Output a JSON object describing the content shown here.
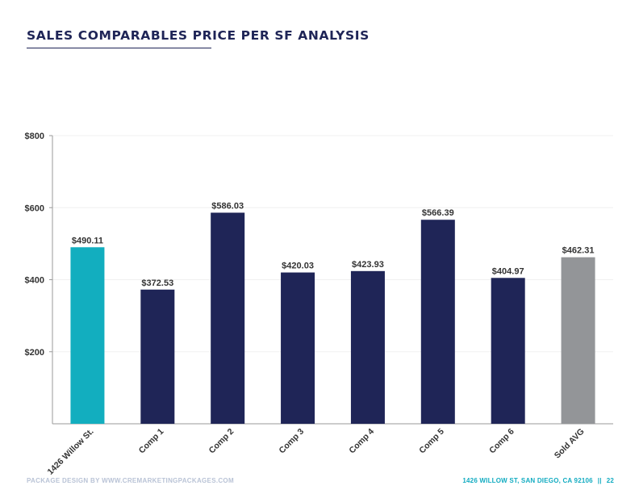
{
  "page": {
    "title": "SALES COMPARABLES PRICE PER SF ANALYSIS",
    "footer_left": "PACKAGE DESIGN BY WWW.CREMARKETINGPACKAGES.COM",
    "footer_address": "1426 WILLOW ST, SAN DIEGO, CA 92106",
    "footer_separator": "||",
    "footer_page": "22"
  },
  "colors": {
    "subject": "#12aebf",
    "comp": "#1f2557",
    "average": "#939598",
    "title": "#1f2557",
    "axis": "#9a9a9a",
    "gridline": "#f0f0f0"
  },
  "chart_data": {
    "type": "bar",
    "title": "SALES COMPARABLES PRICE PER SF ANALYSIS",
    "xlabel": "",
    "ylabel": "",
    "categories": [
      "1426 Willow St.",
      "Comp 1",
      "Comp 2",
      "Comp 3",
      "Comp 4",
      "Comp 5",
      "Comp 6",
      "Sold AVG"
    ],
    "values": [
      490.11,
      372.53,
      586.03,
      420.03,
      423.93,
      566.39,
      404.97,
      462.31
    ],
    "data_labels": [
      "$490.11",
      "$372.53",
      "$586.03",
      "$420.03",
      "$423.93",
      "$566.39",
      "$404.97",
      "$462.31"
    ],
    "bar_colors": [
      "subject",
      "comp",
      "comp",
      "comp",
      "comp",
      "comp",
      "comp",
      "average"
    ],
    "ylim": [
      0,
      800
    ],
    "yticks": [
      200,
      400,
      600,
      800
    ],
    "ytick_labels": [
      "$200",
      "$400",
      "$600",
      "$800"
    ],
    "grid": true,
    "legend": "none"
  }
}
